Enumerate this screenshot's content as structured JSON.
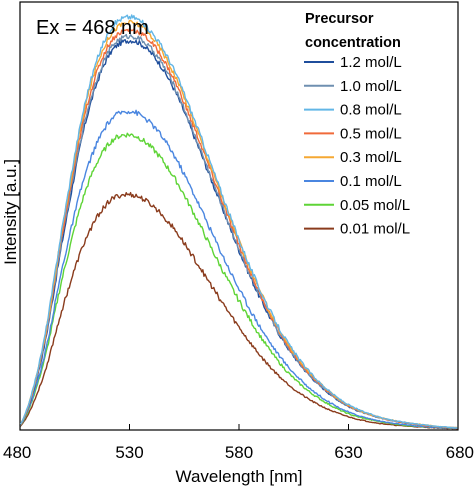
{
  "chart_data": {
    "type": "line",
    "annotation": "Ex = 468 nm",
    "xlabel": "Wavelength [nm]",
    "ylabel": "Intensity [a.u.]",
    "xlim": [
      480,
      680
    ],
    "ylim": [
      0,
      1.0
    ],
    "xticks": [
      480,
      530,
      580,
      630,
      680
    ],
    "yticks_shown": false,
    "grid": false,
    "legend": {
      "title_lines": [
        "Precursor",
        "concentration"
      ],
      "position": "top-right"
    },
    "x": [
      480,
      490,
      500,
      510,
      520,
      530,
      540,
      550,
      560,
      570,
      580,
      590,
      600,
      610,
      620,
      630,
      640,
      650,
      660,
      670,
      680
    ],
    "series": [
      {
        "name": "1.2 mol/L",
        "color": "#1f4e9c",
        "values": [
          0.01,
          0.17,
          0.46,
          0.72,
          0.87,
          0.91,
          0.88,
          0.8,
          0.68,
          0.55,
          0.42,
          0.305,
          0.21,
          0.14,
          0.09,
          0.055,
          0.035,
          0.022,
          0.014,
          0.008,
          0.005
        ]
      },
      {
        "name": "1.0 mol/L",
        "color": "#6f8fb0",
        "values": [
          0.01,
          0.175,
          0.47,
          0.73,
          0.88,
          0.92,
          0.89,
          0.808,
          0.686,
          0.555,
          0.424,
          0.308,
          0.212,
          0.142,
          0.091,
          0.056,
          0.035,
          0.022,
          0.014,
          0.008,
          0.005
        ]
      },
      {
        "name": "0.8 mol/L",
        "color": "#62b6e6",
        "values": [
          0.011,
          0.185,
          0.495,
          0.77,
          0.925,
          0.965,
          0.93,
          0.845,
          0.72,
          0.582,
          0.445,
          0.323,
          0.223,
          0.149,
          0.096,
          0.059,
          0.037,
          0.023,
          0.015,
          0.009,
          0.005
        ]
      },
      {
        "name": "0.5 mol/L",
        "color": "#f06a3a",
        "values": [
          0.01,
          0.178,
          0.478,
          0.745,
          0.895,
          0.935,
          0.905,
          0.822,
          0.7,
          0.566,
          0.432,
          0.314,
          0.216,
          0.144,
          0.093,
          0.057,
          0.036,
          0.022,
          0.014,
          0.008,
          0.005
        ]
      },
      {
        "name": "0.3 mol/L",
        "color": "#f5a833",
        "values": [
          0.011,
          0.182,
          0.488,
          0.76,
          0.912,
          0.952,
          0.92,
          0.836,
          0.712,
          0.576,
          0.44,
          0.32,
          0.22,
          0.147,
          0.095,
          0.058,
          0.036,
          0.023,
          0.015,
          0.009,
          0.005
        ]
      },
      {
        "name": "0.1 mol/L",
        "color": "#4a86e0",
        "values": [
          0.01,
          0.15,
          0.395,
          0.6,
          0.715,
          0.745,
          0.715,
          0.645,
          0.545,
          0.435,
          0.33,
          0.238,
          0.163,
          0.108,
          0.069,
          0.042,
          0.026,
          0.016,
          0.01,
          0.006,
          0.004
        ]
      },
      {
        "name": "0.05 mol/L",
        "color": "#5ed436",
        "values": [
          0.009,
          0.142,
          0.37,
          0.56,
          0.665,
          0.69,
          0.66,
          0.593,
          0.5,
          0.398,
          0.302,
          0.217,
          0.148,
          0.098,
          0.063,
          0.038,
          0.024,
          0.015,
          0.009,
          0.006,
          0.004
        ]
      },
      {
        "name": "0.01 mol/L",
        "color": "#8a3b1c",
        "values": [
          0.008,
          0.115,
          0.295,
          0.445,
          0.53,
          0.55,
          0.526,
          0.472,
          0.397,
          0.316,
          0.24,
          0.172,
          0.118,
          0.078,
          0.05,
          0.031,
          0.019,
          0.012,
          0.008,
          0.005,
          0.003
        ]
      }
    ]
  }
}
